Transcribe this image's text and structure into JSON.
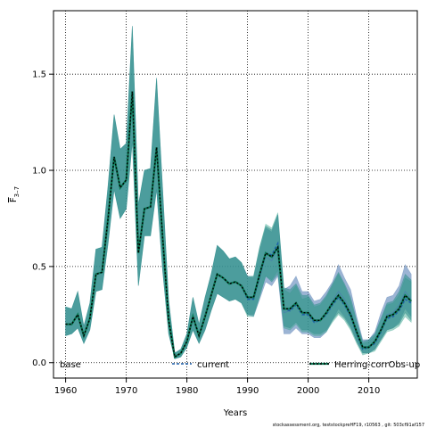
{
  "chart_data": {
    "type": "area",
    "xlabel": "Years",
    "ylabel_main": "F",
    "ylabel_sub": "3–7",
    "xlim": [
      1958,
      2018
    ],
    "ylim": [
      -0.08,
      1.83
    ],
    "xticks": [
      1960,
      1970,
      1980,
      1990,
      2000,
      2010
    ],
    "yticks": [
      0.0,
      0.5,
      1.0,
      1.5
    ],
    "ytick_labels": [
      "0.0",
      "0.5",
      "1.0",
      "1.5"
    ],
    "grid": true,
    "legend_position": "bottom",
    "footnote": "stockassessment.org, teststockpreHF19, r10563 , git: 503cf91af157",
    "years": [
      1960,
      1961,
      1962,
      1963,
      1964,
      1965,
      1966,
      1967,
      1968,
      1969,
      1970,
      1971,
      1972,
      1973,
      1974,
      1975,
      1976,
      1977,
      1978,
      1979,
      1980,
      1981,
      1982,
      1983,
      1984,
      1985,
      1986,
      1987,
      1988,
      1989,
      1990,
      1991,
      1992,
      1993,
      1994,
      1995,
      1996,
      1997,
      1998,
      1999,
      2000,
      2001,
      2002,
      2003,
      2004,
      2005,
      2006,
      2007,
      2008,
      2009,
      2010,
      2011,
      2012,
      2013,
      2014,
      2015,
      2016,
      2017
    ],
    "series": [
      {
        "name": "base",
        "color": "#4a77b0",
        "values": [
          0.2,
          0.2,
          0.25,
          0.14,
          0.23,
          0.46,
          0.47,
          0.75,
          1.07,
          0.91,
          0.95,
          1.41,
          0.57,
          0.8,
          0.81,
          1.12,
          0.65,
          0.22,
          0.03,
          0.05,
          0.11,
          0.24,
          0.14,
          0.24,
          0.35,
          0.46,
          0.44,
          0.41,
          0.42,
          0.4,
          0.34,
          0.33,
          0.44,
          0.55,
          0.53,
          0.6,
          0.26,
          0.27,
          0.31,
          0.26,
          0.25,
          0.21,
          0.22,
          0.26,
          0.32,
          0.37,
          0.33,
          0.27,
          0.17,
          0.08,
          0.08,
          0.11,
          0.18,
          0.25,
          0.26,
          0.3,
          0.37,
          0.33
        ],
        "lower": [
          0.14,
          0.15,
          0.18,
          0.1,
          0.17,
          0.37,
          0.38,
          0.62,
          0.9,
          0.75,
          0.8,
          1.15,
          0.4,
          0.66,
          0.66,
          0.9,
          0.48,
          0.15,
          0.02,
          0.03,
          0.08,
          0.17,
          0.1,
          0.17,
          0.27,
          0.36,
          0.34,
          0.32,
          0.33,
          0.31,
          0.25,
          0.24,
          0.33,
          0.42,
          0.4,
          0.45,
          0.15,
          0.15,
          0.18,
          0.15,
          0.15,
          0.13,
          0.13,
          0.16,
          0.22,
          0.28,
          0.24,
          0.19,
          0.11,
          0.05,
          0.05,
          0.07,
          0.12,
          0.17,
          0.18,
          0.21,
          0.28,
          0.24
        ],
        "upper": [
          0.29,
          0.28,
          0.37,
          0.19,
          0.31,
          0.59,
          0.6,
          0.92,
          1.29,
          1.11,
          1.14,
          1.75,
          0.82,
          1.0,
          1.01,
          1.48,
          0.9,
          0.32,
          0.05,
          0.07,
          0.15,
          0.34,
          0.2,
          0.34,
          0.46,
          0.61,
          0.58,
          0.54,
          0.55,
          0.52,
          0.45,
          0.44,
          0.58,
          0.7,
          0.68,
          0.77,
          0.38,
          0.4,
          0.45,
          0.37,
          0.37,
          0.32,
          0.33,
          0.37,
          0.42,
          0.51,
          0.44,
          0.38,
          0.24,
          0.12,
          0.12,
          0.16,
          0.26,
          0.34,
          0.35,
          0.4,
          0.51,
          0.46
        ]
      },
      {
        "name": "current",
        "color": "#3aa58f",
        "values": [
          0.2,
          0.2,
          0.25,
          0.14,
          0.23,
          0.46,
          0.47,
          0.75,
          1.07,
          0.91,
          0.95,
          1.41,
          0.57,
          0.8,
          0.81,
          1.12,
          0.65,
          0.22,
          0.03,
          0.05,
          0.11,
          0.24,
          0.14,
          0.24,
          0.35,
          0.46,
          0.44,
          0.41,
          0.42,
          0.4,
          0.33,
          0.33,
          0.45,
          0.57,
          0.56,
          0.62,
          0.28,
          0.27,
          0.3,
          0.25,
          0.25,
          0.21,
          0.22,
          0.25,
          0.3,
          0.34,
          0.3,
          0.24,
          0.15,
          0.07,
          0.08,
          0.1,
          0.16,
          0.23,
          0.24,
          0.27,
          0.33,
          0.31
        ],
        "lower": [
          0.14,
          0.15,
          0.18,
          0.1,
          0.17,
          0.37,
          0.38,
          0.62,
          0.9,
          0.75,
          0.8,
          1.15,
          0.4,
          0.66,
          0.66,
          0.9,
          0.48,
          0.15,
          0.02,
          0.03,
          0.08,
          0.17,
          0.1,
          0.17,
          0.27,
          0.36,
          0.34,
          0.32,
          0.33,
          0.31,
          0.24,
          0.24,
          0.34,
          0.45,
          0.43,
          0.48,
          0.18,
          0.17,
          0.2,
          0.16,
          0.16,
          0.14,
          0.14,
          0.16,
          0.21,
          0.25,
          0.22,
          0.17,
          0.1,
          0.04,
          0.05,
          0.06,
          0.11,
          0.16,
          0.17,
          0.19,
          0.24,
          0.21
        ],
        "upper": [
          0.29,
          0.28,
          0.37,
          0.19,
          0.31,
          0.59,
          0.6,
          0.92,
          1.29,
          1.11,
          1.14,
          1.75,
          0.82,
          1.0,
          1.01,
          1.48,
          0.9,
          0.32,
          0.05,
          0.07,
          0.15,
          0.34,
          0.2,
          0.34,
          0.46,
          0.61,
          0.58,
          0.54,
          0.55,
          0.52,
          0.44,
          0.45,
          0.6,
          0.72,
          0.7,
          0.78,
          0.38,
          0.36,
          0.4,
          0.33,
          0.34,
          0.29,
          0.3,
          0.34,
          0.4,
          0.46,
          0.4,
          0.32,
          0.21,
          0.1,
          0.11,
          0.14,
          0.22,
          0.3,
          0.31,
          0.35,
          0.44,
          0.42
        ]
      },
      {
        "name": "Herring-corrObs-up",
        "color": "#2f8f8a",
        "values": [
          0.2,
          0.2,
          0.25,
          0.14,
          0.23,
          0.46,
          0.47,
          0.75,
          1.07,
          0.91,
          0.95,
          1.41,
          0.57,
          0.8,
          0.81,
          1.12,
          0.65,
          0.22,
          0.03,
          0.05,
          0.11,
          0.24,
          0.14,
          0.24,
          0.35,
          0.46,
          0.44,
          0.41,
          0.42,
          0.4,
          0.34,
          0.34,
          0.46,
          0.57,
          0.55,
          0.6,
          0.28,
          0.28,
          0.31,
          0.26,
          0.26,
          0.22,
          0.22,
          0.26,
          0.31,
          0.35,
          0.31,
          0.25,
          0.16,
          0.08,
          0.08,
          0.11,
          0.17,
          0.24,
          0.25,
          0.28,
          0.35,
          0.32
        ],
        "lower": [
          0.14,
          0.15,
          0.18,
          0.1,
          0.17,
          0.37,
          0.38,
          0.62,
          0.9,
          0.75,
          0.8,
          1.15,
          0.4,
          0.66,
          0.66,
          0.9,
          0.48,
          0.15,
          0.02,
          0.03,
          0.08,
          0.17,
          0.1,
          0.17,
          0.27,
          0.36,
          0.34,
          0.32,
          0.33,
          0.31,
          0.25,
          0.25,
          0.35,
          0.45,
          0.42,
          0.46,
          0.19,
          0.18,
          0.21,
          0.17,
          0.17,
          0.15,
          0.15,
          0.17,
          0.22,
          0.26,
          0.23,
          0.18,
          0.11,
          0.05,
          0.05,
          0.07,
          0.12,
          0.17,
          0.18,
          0.2,
          0.26,
          0.22
        ],
        "upper": [
          0.29,
          0.28,
          0.37,
          0.19,
          0.31,
          0.59,
          0.6,
          0.92,
          1.29,
          1.11,
          1.14,
          1.75,
          0.82,
          1.0,
          1.01,
          1.48,
          0.9,
          0.32,
          0.05,
          0.07,
          0.15,
          0.34,
          0.2,
          0.34,
          0.46,
          0.61,
          0.58,
          0.54,
          0.55,
          0.52,
          0.45,
          0.45,
          0.6,
          0.71,
          0.69,
          0.77,
          0.39,
          0.38,
          0.41,
          0.35,
          0.35,
          0.3,
          0.31,
          0.35,
          0.41,
          0.47,
          0.41,
          0.34,
          0.22,
          0.11,
          0.12,
          0.15,
          0.23,
          0.31,
          0.32,
          0.37,
          0.46,
          0.43
        ]
      }
    ]
  }
}
